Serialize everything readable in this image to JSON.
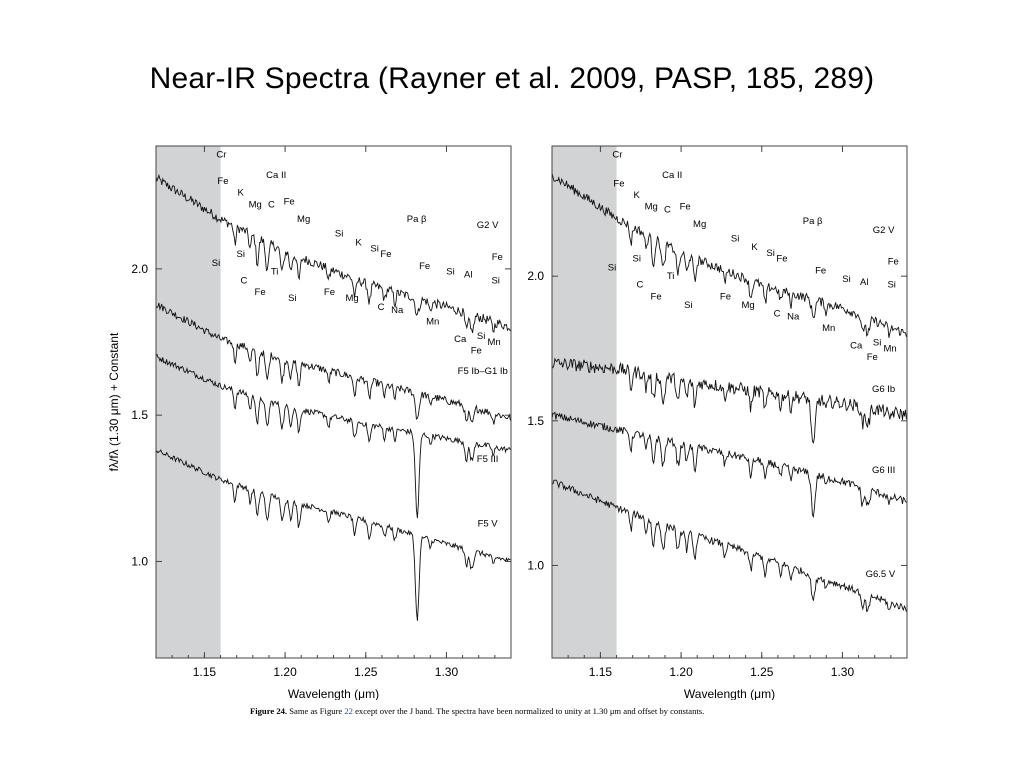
{
  "slide": {
    "title": "Near-IR Spectra (Rayner et al. 2009, PASP, 185, 289)",
    "caption": {
      "label": "Figure 24.",
      "text_before": " Same as Figure ",
      "ref": "22",
      "text_after": " except over the J band. The spectra have been normalized to unity at 1.30 μm and offset by constants."
    }
  },
  "colors": {
    "shade": "#d2d3d5",
    "line": "#111111",
    "frame": "#444444",
    "ref_link": "#1a4fb0"
  },
  "chart_data": [
    {
      "type": "line",
      "xlabel": "Wavelength (μm)",
      "ylabel": "fλ/fλ (1.30 μm) + Constant",
      "xlim": [
        1.12,
        1.34
      ],
      "ylim": [
        0.67,
        2.42
      ],
      "shaded_region": [
        1.12,
        1.16
      ],
      "grid": false,
      "x_ticks": [
        "1.15",
        "1.20",
        "1.25",
        "1.30"
      ],
      "x_tick_values": [
        1.15,
        1.2,
        1.25,
        1.3
      ],
      "y_ticks": [
        "1.0",
        "1.5",
        "2.0"
      ],
      "y_tick_values": [
        1.0,
        1.5,
        2.0
      ],
      "series": [
        {
          "name": "G2 V",
          "x": [
            1.12,
            1.16,
            1.2,
            1.25,
            1.3,
            1.34
          ],
          "y": [
            2.31,
            2.17,
            2.06,
            1.95,
            1.87,
            1.8
          ]
        },
        {
          "name": "F5 Ib–G1 Ib",
          "x": [
            1.12,
            1.16,
            1.2,
            1.25,
            1.3,
            1.34
          ],
          "y": [
            1.88,
            1.76,
            1.69,
            1.62,
            1.55,
            1.49
          ]
        },
        {
          "name": "F5 III",
          "x": [
            1.12,
            1.16,
            1.2,
            1.25,
            1.3,
            1.34
          ],
          "y": [
            1.7,
            1.6,
            1.53,
            1.47,
            1.42,
            1.38
          ]
        },
        {
          "name": "F5 V",
          "x": [
            1.12,
            1.16,
            1.2,
            1.25,
            1.3,
            1.34
          ],
          "y": [
            1.38,
            1.28,
            1.21,
            1.14,
            1.06,
            1.0
          ]
        }
      ],
      "annotations": [
        {
          "text": "Cr",
          "x": 1.1605,
          "y": 2.38
        },
        {
          "text": "Fe",
          "x": 1.1615,
          "y": 2.29
        },
        {
          "text": "K",
          "x": 1.1725,
          "y": 2.25
        },
        {
          "text": "Mg",
          "x": 1.1815,
          "y": 2.21
        },
        {
          "text": "Ca II",
          "x": 1.1945,
          "y": 2.31
        },
        {
          "text": "C",
          "x": 1.1915,
          "y": 2.21
        },
        {
          "text": "Fe",
          "x": 1.2025,
          "y": 2.22
        },
        {
          "text": "Mg",
          "x": 1.2115,
          "y": 2.16
        },
        {
          "text": "Si",
          "x": 1.1572,
          "y": 2.01
        },
        {
          "text": "Si",
          "x": 1.1725,
          "y": 2.04
        },
        {
          "text": "C",
          "x": 1.1745,
          "y": 1.95
        },
        {
          "text": "Ti",
          "x": 1.1935,
          "y": 1.98
        },
        {
          "text": "Fe",
          "x": 1.1845,
          "y": 1.91
        },
        {
          "text": "Si",
          "x": 1.2045,
          "y": 1.89
        },
        {
          "text": "Si",
          "x": 1.2335,
          "y": 2.11
        },
        {
          "text": "K",
          "x": 1.2455,
          "y": 2.08
        },
        {
          "text": "Si",
          "x": 1.2555,
          "y": 2.06
        },
        {
          "text": "Fe",
          "x": 1.2625,
          "y": 2.04
        },
        {
          "text": "Fe",
          "x": 1.2275,
          "y": 1.91
        },
        {
          "text": "Mg",
          "x": 1.2415,
          "y": 1.89
        },
        {
          "text": "C",
          "x": 1.2595,
          "y": 1.86
        },
        {
          "text": "Na",
          "x": 1.2695,
          "y": 1.85
        },
        {
          "text": "Pa  β",
          "x": 1.2815,
          "y": 2.16
        },
        {
          "text": "G2  V",
          "x": 1.3255,
          "y": 2.14
        },
        {
          "text": "Fe",
          "x": 1.2865,
          "y": 2.0
        },
        {
          "text": "Si",
          "x": 1.3025,
          "y": 1.98
        },
        {
          "text": "Al",
          "x": 1.3135,
          "y": 1.97
        },
        {
          "text": "Fe",
          "x": 1.3315,
          "y": 2.03
        },
        {
          "text": "Si",
          "x": 1.3305,
          "y": 1.95
        },
        {
          "text": "Mn",
          "x": 1.2915,
          "y": 1.81
        },
        {
          "text": "Ca",
          "x": 1.3085,
          "y": 1.75
        },
        {
          "text": "Si",
          "x": 1.3215,
          "y": 1.76
        },
        {
          "text": "Fe",
          "x": 1.3185,
          "y": 1.71
        },
        {
          "text": "Mn",
          "x": 1.3295,
          "y": 1.74
        },
        {
          "text": "F5 Ib–G1 Ib",
          "x": 1.3225,
          "y": 1.64
        },
        {
          "text": "F5 III",
          "x": 1.3255,
          "y": 1.34
        },
        {
          "text": "F5 V",
          "x": 1.3255,
          "y": 1.12
        }
      ]
    },
    {
      "type": "line",
      "xlabel": "Wavelength (μm)",
      "ylabel": "",
      "xlim": [
        1.12,
        1.34
      ],
      "ylim": [
        0.68,
        2.45
      ],
      "shaded_region": [
        1.12,
        1.16
      ],
      "grid": false,
      "x_ticks": [
        "1.15",
        "1.20",
        "1.25",
        "1.30"
      ],
      "x_tick_values": [
        1.15,
        1.2,
        1.25,
        1.3
      ],
      "y_ticks": [
        "1.0",
        "1.5",
        "2.0"
      ],
      "y_tick_values": [
        1.0,
        1.5,
        2.0
      ],
      "series": [
        {
          "name": "G2 V",
          "x": [
            1.12,
            1.16,
            1.2,
            1.25,
            1.3,
            1.34
          ],
          "y": [
            2.35,
            2.2,
            2.08,
            1.97,
            1.89,
            1.8
          ]
        },
        {
          "name": "G6 Ib",
          "x": [
            1.12,
            1.16,
            1.2,
            1.25,
            1.3,
            1.34
          ],
          "y": [
            1.7,
            1.68,
            1.64,
            1.6,
            1.56,
            1.52
          ]
        },
        {
          "name": "G6 III",
          "x": [
            1.12,
            1.16,
            1.2,
            1.25,
            1.3,
            1.34
          ],
          "y": [
            1.52,
            1.47,
            1.42,
            1.36,
            1.29,
            1.22
          ]
        },
        {
          "name": "G6.5 V",
          "x": [
            1.12,
            1.16,
            1.2,
            1.25,
            1.3,
            1.34
          ],
          "y": [
            1.29,
            1.2,
            1.12,
            1.03,
            0.93,
            0.85
          ]
        }
      ],
      "annotations": [
        {
          "text": "Cr",
          "x": 1.1605,
          "y": 2.41
        },
        {
          "text": "Fe",
          "x": 1.1615,
          "y": 2.31
        },
        {
          "text": "K",
          "x": 1.1725,
          "y": 2.27
        },
        {
          "text": "Mg",
          "x": 1.1815,
          "y": 2.23
        },
        {
          "text": "Ca II",
          "x": 1.1945,
          "y": 2.34
        },
        {
          "text": "C",
          "x": 1.1915,
          "y": 2.22
        },
        {
          "text": "Fe",
          "x": 1.2025,
          "y": 2.23
        },
        {
          "text": "Mg",
          "x": 1.2115,
          "y": 2.17
        },
        {
          "text": "Si",
          "x": 1.1572,
          "y": 2.02
        },
        {
          "text": "Si",
          "x": 1.1725,
          "y": 2.05
        },
        {
          "text": "C",
          "x": 1.1745,
          "y": 1.96
        },
        {
          "text": "Ti",
          "x": 1.1935,
          "y": 1.99
        },
        {
          "text": "Fe",
          "x": 1.1845,
          "y": 1.92
        },
        {
          "text": "Si",
          "x": 1.2045,
          "y": 1.89
        },
        {
          "text": "Si",
          "x": 1.2335,
          "y": 2.12
        },
        {
          "text": "K",
          "x": 1.2455,
          "y": 2.09
        },
        {
          "text": "Si",
          "x": 1.2555,
          "y": 2.07
        },
        {
          "text": "Fe",
          "x": 1.2625,
          "y": 2.05
        },
        {
          "text": "Fe",
          "x": 1.2275,
          "y": 1.92
        },
        {
          "text": "Mg",
          "x": 1.2415,
          "y": 1.89
        },
        {
          "text": "C",
          "x": 1.2595,
          "y": 1.86
        },
        {
          "text": "Na",
          "x": 1.2695,
          "y": 1.85
        },
        {
          "text": "Pa  β",
          "x": 1.2815,
          "y": 2.18
        },
        {
          "text": "G2  V",
          "x": 1.3255,
          "y": 2.15
        },
        {
          "text": "Fe",
          "x": 1.2865,
          "y": 2.01
        },
        {
          "text": "Si",
          "x": 1.3025,
          "y": 1.98
        },
        {
          "text": "Al",
          "x": 1.3135,
          "y": 1.97
        },
        {
          "text": "Fe",
          "x": 1.3315,
          "y": 2.04
        },
        {
          "text": "Si",
          "x": 1.3305,
          "y": 1.96
        },
        {
          "text": "Mn",
          "x": 1.2915,
          "y": 1.81
        },
        {
          "text": "Ca",
          "x": 1.3085,
          "y": 1.75
        },
        {
          "text": "Si",
          "x": 1.3215,
          "y": 1.76
        },
        {
          "text": "Fe",
          "x": 1.3185,
          "y": 1.71
        },
        {
          "text": "Mn",
          "x": 1.3295,
          "y": 1.74
        },
        {
          "text": "G6 Ib",
          "x": 1.3255,
          "y": 1.6
        },
        {
          "text": "G6 III",
          "x": 1.3255,
          "y": 1.32
        },
        {
          "text": "G6.5  V",
          "x": 1.3235,
          "y": 0.96
        }
      ]
    }
  ]
}
